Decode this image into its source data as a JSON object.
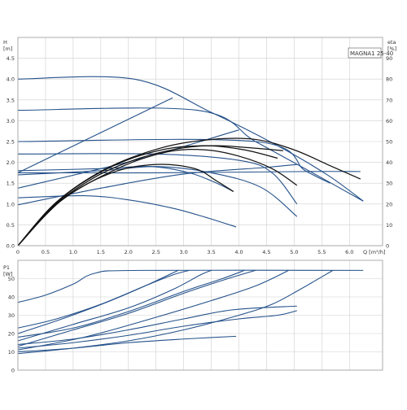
{
  "chart_data": [
    {
      "type": "line",
      "title": "MAGNA1 25-40",
      "xlabel": "Q [m³/h]",
      "ylabel": "H [m]",
      "y2label": "eta [%]",
      "xlim": [
        0,
        6.6
      ],
      "ylim": [
        0,
        5.0
      ],
      "y2lim": [
        0,
        100
      ],
      "xticks": [
        "0",
        "0.5",
        "1.0",
        "1.5",
        "2.0",
        "2.5",
        "3.0",
        "3.5",
        "4.0",
        "4.5",
        "5.0",
        "5.5",
        "6.0"
      ],
      "yticks": [
        "0.0",
        "0.5",
        "1.0",
        "1.5",
        "2.0",
        "2.5",
        "3.0",
        "3.5",
        "4.0",
        "4.5"
      ],
      "y2ticks": [
        "0",
        "10",
        "20",
        "30",
        "40",
        "50",
        "60",
        "70",
        "80",
        "90"
      ],
      "grid": true,
      "series": [
        {
          "color": "#24518a",
          "points": [
            [
              0,
              4.0
            ],
            [
              2.1,
              4.0
            ],
            [
              3.5,
              3.2
            ],
            [
              4.7,
              2.4
            ],
            [
              5.6,
              1.7
            ],
            [
              6.25,
              1.07
            ]
          ]
        },
        {
          "color": "#24518a",
          "points": [
            [
              0,
              3.25
            ],
            [
              3.25,
              3.25
            ],
            [
              4.3,
              2.5
            ],
            [
              5.4,
              1.7
            ],
            [
              6.25,
              1.07
            ]
          ]
        },
        {
          "color": "#24518a",
          "points": [
            [
              0,
              2.5
            ],
            [
              4.3,
              2.5
            ],
            [
              5.2,
              1.8
            ],
            [
              5.65,
              1.5
            ]
          ]
        },
        {
          "color": "#24518a",
          "points": [
            [
              0,
              1.75
            ],
            [
              2.8,
              3.55
            ]
          ]
        },
        {
          "color": "#24518a",
          "points": [
            [
              0,
              1.38
            ],
            [
              2.2,
              2.08
            ],
            [
              4.0,
              2.78
            ]
          ]
        },
        {
          "color": "#24518a",
          "points": [
            [
              0,
              1.8
            ],
            [
              1.5,
              1.85
            ],
            [
              2.4,
              1.9
            ],
            [
              3.1,
              1.75
            ],
            [
              3.6,
              1.5
            ],
            [
              3.9,
              1.3
            ]
          ]
        },
        {
          "color": "#24518a",
          "points": [
            [
              0,
              1.15
            ],
            [
              1.2,
              1.2
            ],
            [
              2.0,
              1.1
            ],
            [
              2.8,
              0.9
            ],
            [
              3.4,
              0.68
            ],
            [
              3.95,
              0.45
            ]
          ]
        },
        {
          "color": "#24518a",
          "points": [
            [
              0,
              1.75
            ],
            [
              2.5,
              1.75
            ],
            [
              5.2,
              1.78
            ],
            [
              6.2,
              1.78
            ]
          ]
        },
        {
          "color": "#24518a",
          "points": [
            [
              0,
              0.98
            ],
            [
              1.5,
              1.38
            ],
            [
              3.0,
              1.72
            ],
            [
              4.5,
              1.88
            ],
            [
              5.05,
              1.95
            ]
          ]
        },
        {
          "color": "#24518a",
          "points": [
            [
              0,
              1.7
            ],
            [
              1.5,
              1.8
            ],
            [
              2.5,
              1.9
            ],
            [
              3.5,
              1.75
            ],
            [
              4.4,
              1.4
            ],
            [
              5.05,
              0.7
            ]
          ]
        },
        {
          "color": "#24518a",
          "points": [
            [
              0,
              2.2
            ],
            [
              2.5,
              2.2
            ],
            [
              4.0,
              2.05
            ],
            [
              4.6,
              1.75
            ],
            [
              5.05,
              1.0
            ]
          ]
        },
        {
          "color": "#111111",
          "points": [
            [
              0,
              0
            ],
            [
              0.6,
              0.9
            ],
            [
              1.4,
              1.65
            ],
            [
              2.2,
              2.1
            ],
            [
              3.0,
              2.35
            ],
            [
              3.6,
              2.4
            ],
            [
              4.2,
              2.35
            ],
            [
              4.8,
              2.28
            ]
          ]
        },
        {
          "color": "#111111",
          "points": [
            [
              0,
              0
            ],
            [
              0.7,
              1.05
            ],
            [
              1.6,
              1.85
            ],
            [
              2.6,
              2.35
            ],
            [
              3.5,
              2.55
            ],
            [
              4.3,
              2.55
            ],
            [
              5.0,
              2.3
            ],
            [
              5.6,
              1.95
            ],
            [
              6.2,
              1.6
            ]
          ]
        },
        {
          "color": "#111111",
          "points": [
            [
              0,
              0
            ],
            [
              0.8,
              1.1
            ],
            [
              1.7,
              1.75
            ],
            [
              2.5,
              1.95
            ],
            [
              3.2,
              1.85
            ],
            [
              3.6,
              1.55
            ],
            [
              3.9,
              1.3
            ]
          ]
        },
        {
          "color": "#111111",
          "points": [
            [
              0,
              0
            ],
            [
              0.75,
              1.05
            ],
            [
              1.8,
              1.85
            ],
            [
              2.7,
              2.25
            ],
            [
              3.4,
              2.3
            ],
            [
              4.0,
              2.15
            ],
            [
              4.6,
              1.85
            ],
            [
              5.05,
              1.45
            ]
          ]
        },
        {
          "color": "#111111",
          "points": [
            [
              0,
              0
            ],
            [
              0.8,
              1.15
            ],
            [
              1.7,
              1.9
            ],
            [
              2.6,
              2.3
            ],
            [
              3.4,
              2.4
            ],
            [
              4.1,
              2.3
            ],
            [
              4.7,
              2.1
            ]
          ]
        }
      ]
    },
    {
      "type": "line",
      "xlabel": "",
      "ylabel": "P1 [W]",
      "xlim": [
        0,
        6.6
      ],
      "ylim": [
        0,
        60
      ],
      "yticks": [
        "0",
        "10",
        "20",
        "30",
        "40",
        "50"
      ],
      "grid": true,
      "series": [
        {
          "color": "#24518a",
          "points": [
            [
              0,
              37
            ],
            [
              0.5,
              41
            ],
            [
              1.0,
              47
            ],
            [
              1.4,
              53
            ],
            [
              2.2,
              54.5
            ],
            [
              6.25,
              54.5
            ]
          ]
        },
        {
          "color": "#24518a",
          "points": [
            [
              0,
              23
            ],
            [
              0.7,
              28
            ],
            [
              1.5,
              36
            ],
            [
              2.3,
              46
            ],
            [
              2.8,
              52
            ],
            [
              3.1,
              54.5
            ]
          ]
        },
        {
          "color": "#24518a",
          "points": [
            [
              0,
              18
            ],
            [
              1.0,
              23
            ],
            [
              2.0,
              32
            ],
            [
              3.0,
              43
            ],
            [
              3.7,
              50
            ],
            [
              4.1,
              54.5
            ]
          ]
        },
        {
          "color": "#24518a",
          "points": [
            [
              0,
              14
            ],
            [
              1.0,
              17
            ],
            [
              2.0,
              22
            ],
            [
              3.0,
              28
            ],
            [
              3.9,
              33
            ],
            [
              5.05,
              35
            ]
          ]
        },
        {
          "color": "#24518a",
          "points": [
            [
              0,
              12
            ],
            [
              1.0,
              15
            ],
            [
              2.0,
              19
            ],
            [
              3.0,
              24
            ],
            [
              4.0,
              28
            ],
            [
              4.7,
              30
            ],
            [
              5.05,
              32.5
            ]
          ]
        },
        {
          "color": "#24518a",
          "points": [
            [
              0,
              10
            ],
            [
              1.0,
              12
            ],
            [
              2.0,
              15
            ],
            [
              3.0,
              17
            ],
            [
              3.95,
              18.5
            ]
          ]
        },
        {
          "color": "#24518a",
          "points": [
            [
              0,
              9
            ],
            [
              1.0,
              12
            ],
            [
              2.0,
              16
            ],
            [
              3.0,
              22
            ],
            [
              4.0,
              30
            ],
            [
              4.6,
              36
            ],
            [
              5.1,
              44
            ],
            [
              5.7,
              54.5
            ]
          ]
        },
        {
          "color": "#24518a",
          "points": [
            [
              0,
              11
            ],
            [
              1.2,
              18
            ],
            [
              2.4,
              28
            ],
            [
              3.5,
              38
            ],
            [
              4.3,
              46
            ],
            [
              4.9,
              54.5
            ]
          ]
        },
        {
          "color": "#24518a",
          "points": [
            [
              0,
              13
            ],
            [
              1.0,
              22
            ],
            [
              2.0,
              31
            ],
            [
              3.0,
              42
            ],
            [
              3.8,
              50
            ],
            [
              4.3,
              54.5
            ]
          ]
        },
        {
          "color": "#24518a",
          "points": [
            [
              0,
              16
            ],
            [
              1.0,
              25
            ],
            [
              2.0,
              34
            ],
            [
              2.8,
              44
            ],
            [
              3.3,
              52
            ],
            [
              3.5,
              54.5
            ]
          ]
        },
        {
          "color": "#24518a",
          "points": [
            [
              0,
              20
            ],
            [
              0.8,
              28
            ],
            [
              1.6,
              37
            ],
            [
              2.3,
              46
            ],
            [
              2.9,
              54.5
            ]
          ]
        }
      ]
    }
  ]
}
